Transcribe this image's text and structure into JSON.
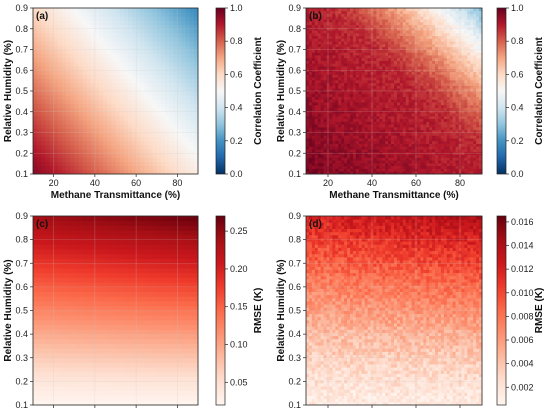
{
  "chart_data": [
    {
      "type": "heatmap",
      "panel_label": "(a)",
      "xlabel": "Methane Transmittance (%)",
      "ylabel": "Relative Humidity (%)",
      "xticks": [
        20,
        40,
        60,
        80
      ],
      "yticks": [
        0.1,
        0.2,
        0.3,
        0.4,
        0.5,
        0.6,
        0.7,
        0.8,
        0.9
      ],
      "xlim": [
        10,
        90
      ],
      "ylim": [
        0.1,
        0.9
      ],
      "colorbar": {
        "label": "Correlation Coefficient",
        "colormap": "RdBu_r",
        "ticks": [
          "0.0",
          "0.2",
          "0.4",
          "0.6",
          "0.8",
          "1.0"
        ],
        "range": [
          0.0,
          1.0
        ]
      },
      "surface": {
        "description_values": "coefficient ~0.95 at low transmittance/low humidity, decreasing diagonally to ~0.2 at high transmittance/high humidity",
        "corner_values": {
          "x10_y0.1": 0.95,
          "x90_y0.1": 0.55,
          "x10_y0.9": 0.62,
          "x90_y0.9": 0.22
        }
      }
    },
    {
      "type": "heatmap",
      "panel_label": "(b)",
      "xlabel": "Methane Transmittance (%)",
      "ylabel": "Relative Humidity (%)",
      "xticks": [
        20,
        40,
        60,
        80
      ],
      "yticks": [
        0.1,
        0.2,
        0.3,
        0.4,
        0.5,
        0.6,
        0.7,
        0.8,
        0.9
      ],
      "xlim": [
        10,
        90
      ],
      "ylim": [
        0.1,
        0.9
      ],
      "colorbar": {
        "label": "Correlation Coefficient",
        "colormap": "RdBu_r",
        "ticks": [
          "0.0",
          "0.2",
          "0.4",
          "0.6",
          "0.8",
          "1.0"
        ],
        "range": [
          0.0,
          1.0
        ]
      },
      "surface": {
        "corner_values": {
          "x10_y0.1": 0.98,
          "x90_y0.1": 0.9,
          "x10_y0.9": 0.88,
          "x90_y0.9": 0.3
        }
      }
    },
    {
      "type": "heatmap",
      "panel_label": "(c)",
      "xlabel": "Methane Transmittance (%)",
      "ylabel": "Relative Humidity (%)",
      "xticks": [
        20,
        40,
        60,
        80
      ],
      "yticks": [
        0.1,
        0.2,
        0.3,
        0.4,
        0.5,
        0.6,
        0.7,
        0.8,
        0.9
      ],
      "xlim": [
        10,
        90
      ],
      "ylim": [
        0.1,
        0.9
      ],
      "colorbar": {
        "label": "RMSE (K)",
        "colormap": "Reds",
        "ticks": [
          "0.05",
          "0.10",
          "0.15",
          "0.20",
          "0.25"
        ],
        "tick_values": [
          0.05,
          0.1,
          0.15,
          0.2,
          0.25
        ],
        "range": [
          0.02,
          0.27
        ]
      },
      "surface": {
        "corner_values": {
          "x10_y0.1": 0.02,
          "x90_y0.1": 0.03,
          "x10_y0.9": 0.22,
          "x90_y0.9": 0.26
        }
      }
    },
    {
      "type": "heatmap",
      "panel_label": "(d)",
      "xlabel": "Methane Transmittance (%)",
      "ylabel": "Relative Humidity (%)",
      "xticks": [
        20,
        40,
        60,
        80
      ],
      "yticks": [
        0.1,
        0.2,
        0.3,
        0.4,
        0.5,
        0.6,
        0.7,
        0.8,
        0.9
      ],
      "xlim": [
        10,
        90
      ],
      "ylim": [
        0.1,
        0.9
      ],
      "colorbar": {
        "label": "RMSE (K)",
        "colormap": "Reds",
        "ticks": [
          "0.002",
          "0.004",
          "0.006",
          "0.008",
          "0.010",
          "0.012",
          "0.014",
          "0.016"
        ],
        "tick_values": [
          0.002,
          0.004,
          0.006,
          0.008,
          0.01,
          0.012,
          0.014,
          0.016
        ],
        "range": [
          0.0005,
          0.0165
        ]
      },
      "surface": {
        "corner_values": {
          "x10_y0.1": 0.002,
          "x90_y0.1": 0.004,
          "x10_y0.9": 0.012,
          "x90_y0.9": 0.016
        }
      }
    }
  ]
}
